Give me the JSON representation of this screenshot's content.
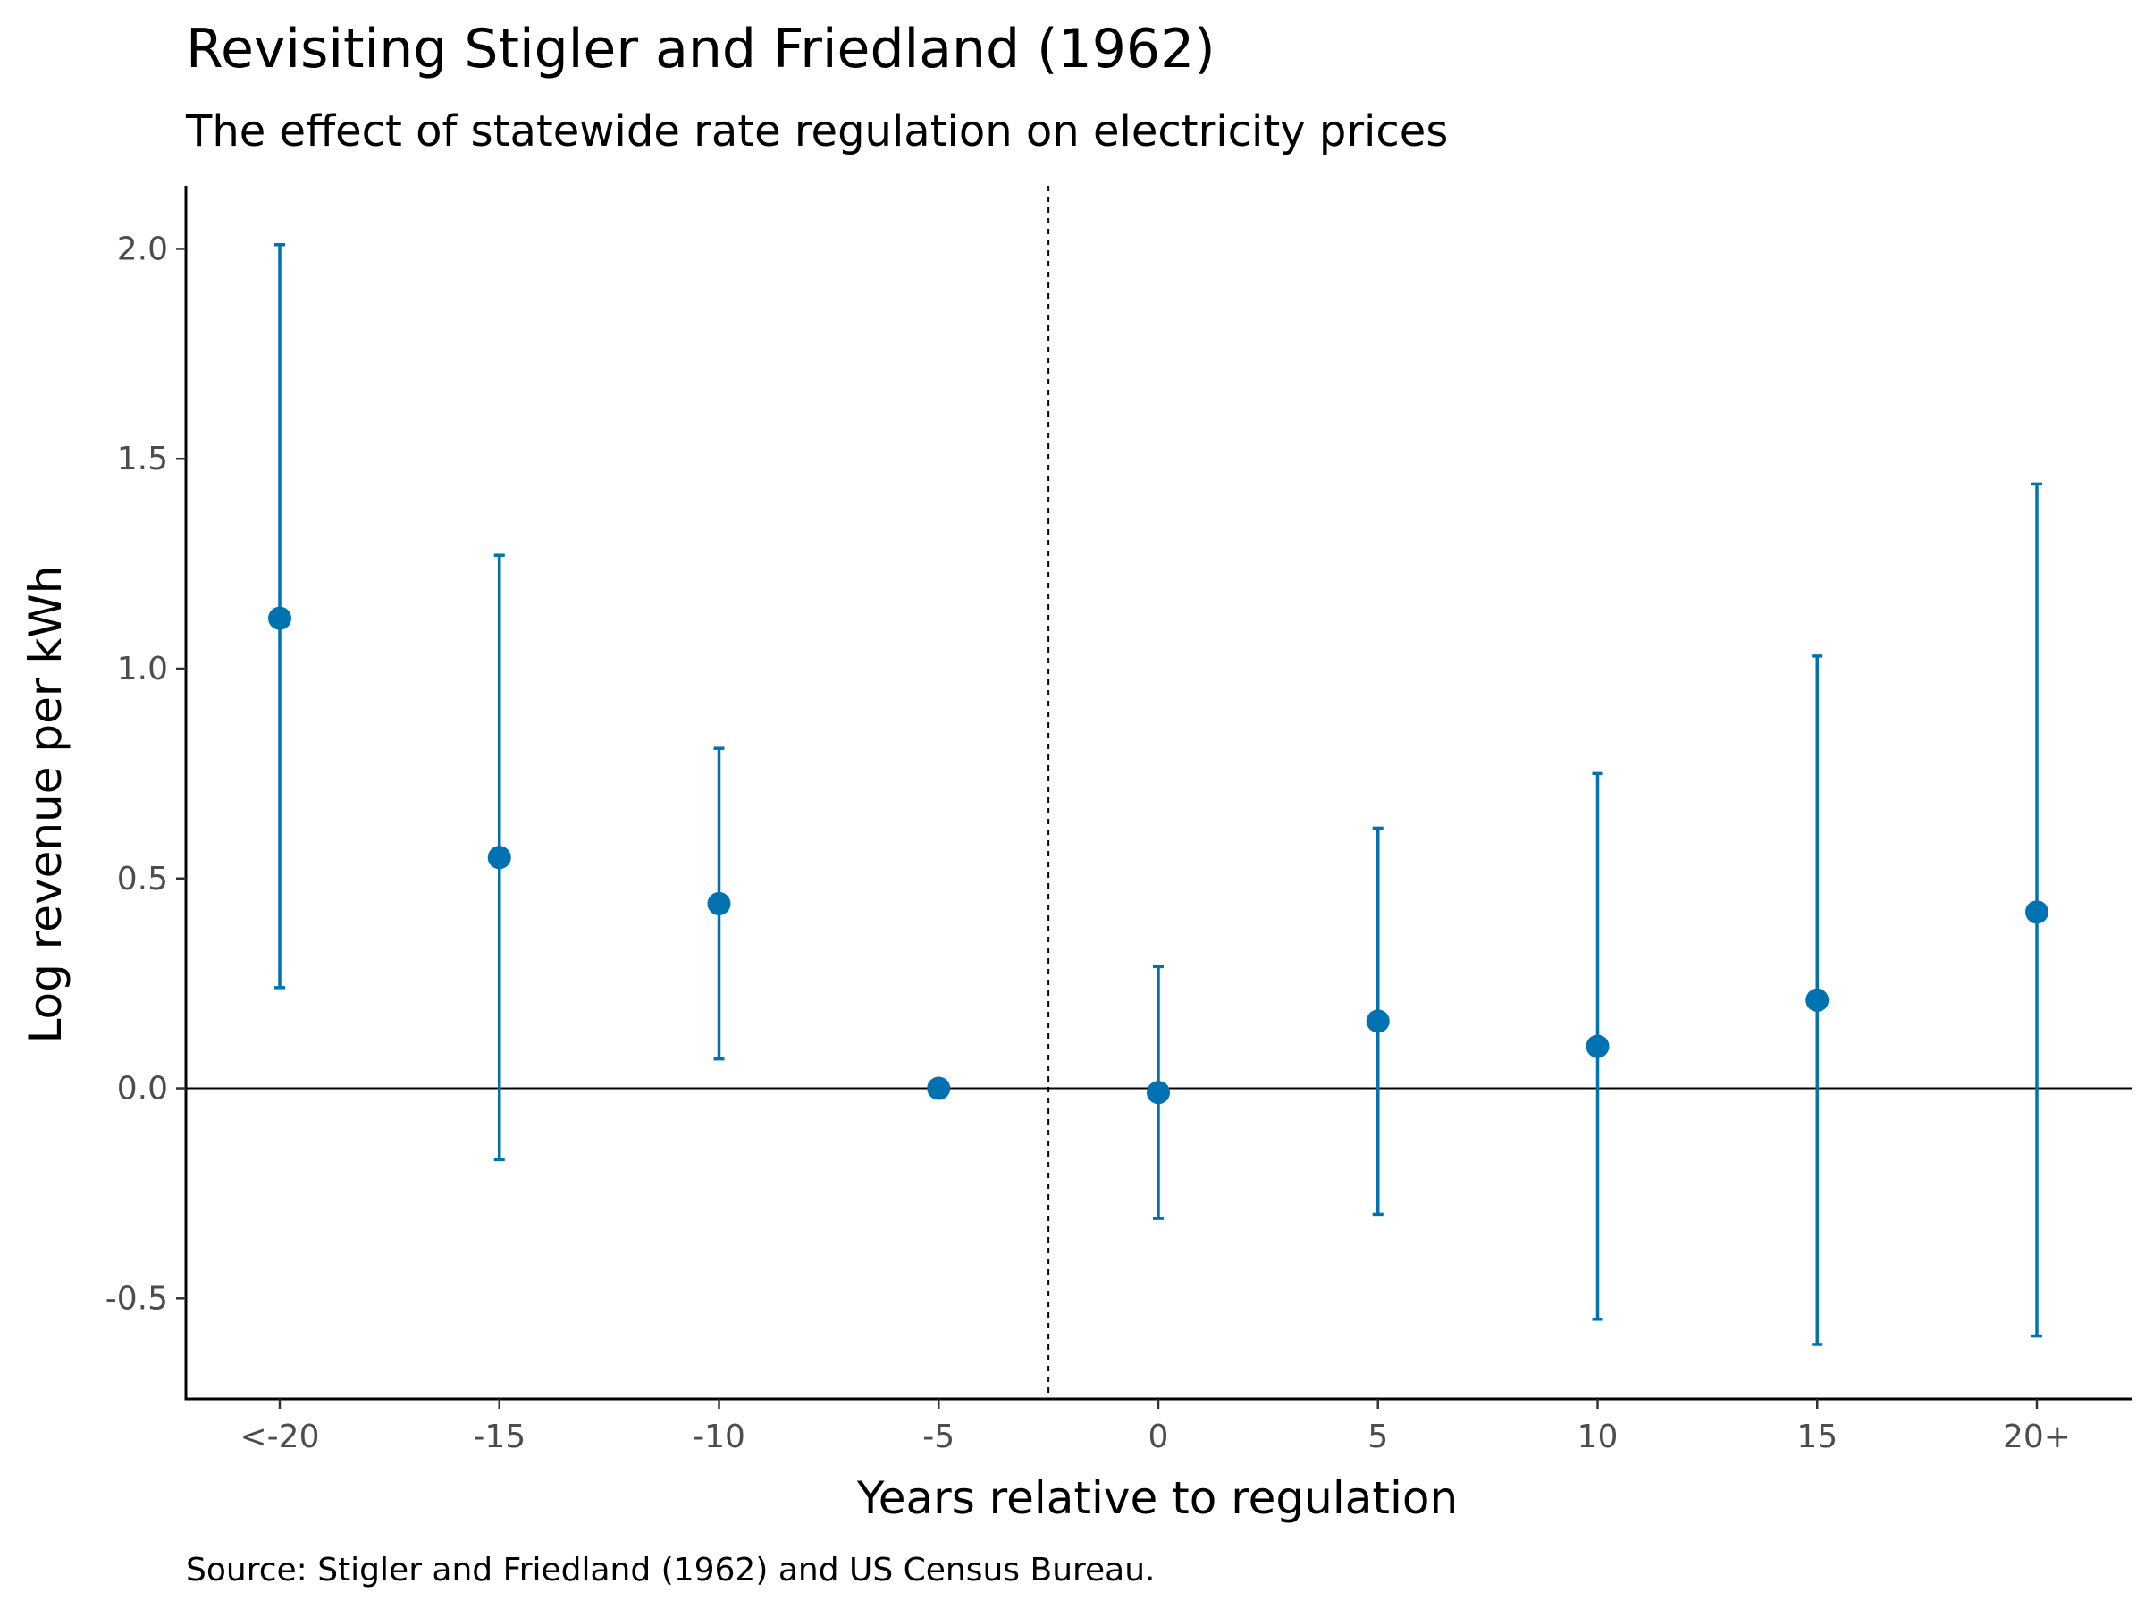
{
  "chart_data": {
    "type": "scatter",
    "title": "Revisiting Stigler and Friedland (1962)",
    "subtitle": "The effect of statewide rate regulation on electricity prices",
    "xlabel": "Years relative to regulation",
    "ylabel": "Log revenue per kWh",
    "caption": "Source: Stigler and Friedland (1962) and US Census Bureau.",
    "categories": [
      "<-20",
      "-15",
      "-10",
      "-5",
      "0",
      "5",
      "10",
      "15",
      "20+"
    ],
    "values": [
      1.12,
      0.55,
      0.44,
      0.0,
      -0.01,
      0.16,
      0.1,
      0.21,
      0.42
    ],
    "ci_low": [
      0.24,
      -0.17,
      0.07,
      null,
      -0.31,
      -0.3,
      -0.55,
      -0.61,
      -0.59
    ],
    "ci_high": [
      2.01,
      1.27,
      0.81,
      null,
      0.29,
      0.62,
      0.75,
      1.03,
      1.44
    ],
    "yticks": [
      -0.5,
      0.0,
      0.5,
      1.0,
      1.5,
      2.0
    ],
    "ytick_labels": [
      "-0.5",
      "0.0",
      "0.5",
      "1.0",
      "1.5",
      "2.0"
    ],
    "ylim": [
      -0.74,
      2.15
    ],
    "reference_line_y": 0,
    "reference_line_x_between": [
      "-5",
      "0"
    ],
    "grid": false,
    "legend": "none",
    "colors": {
      "series": "#0072b2",
      "reference": "#000000"
    }
  }
}
